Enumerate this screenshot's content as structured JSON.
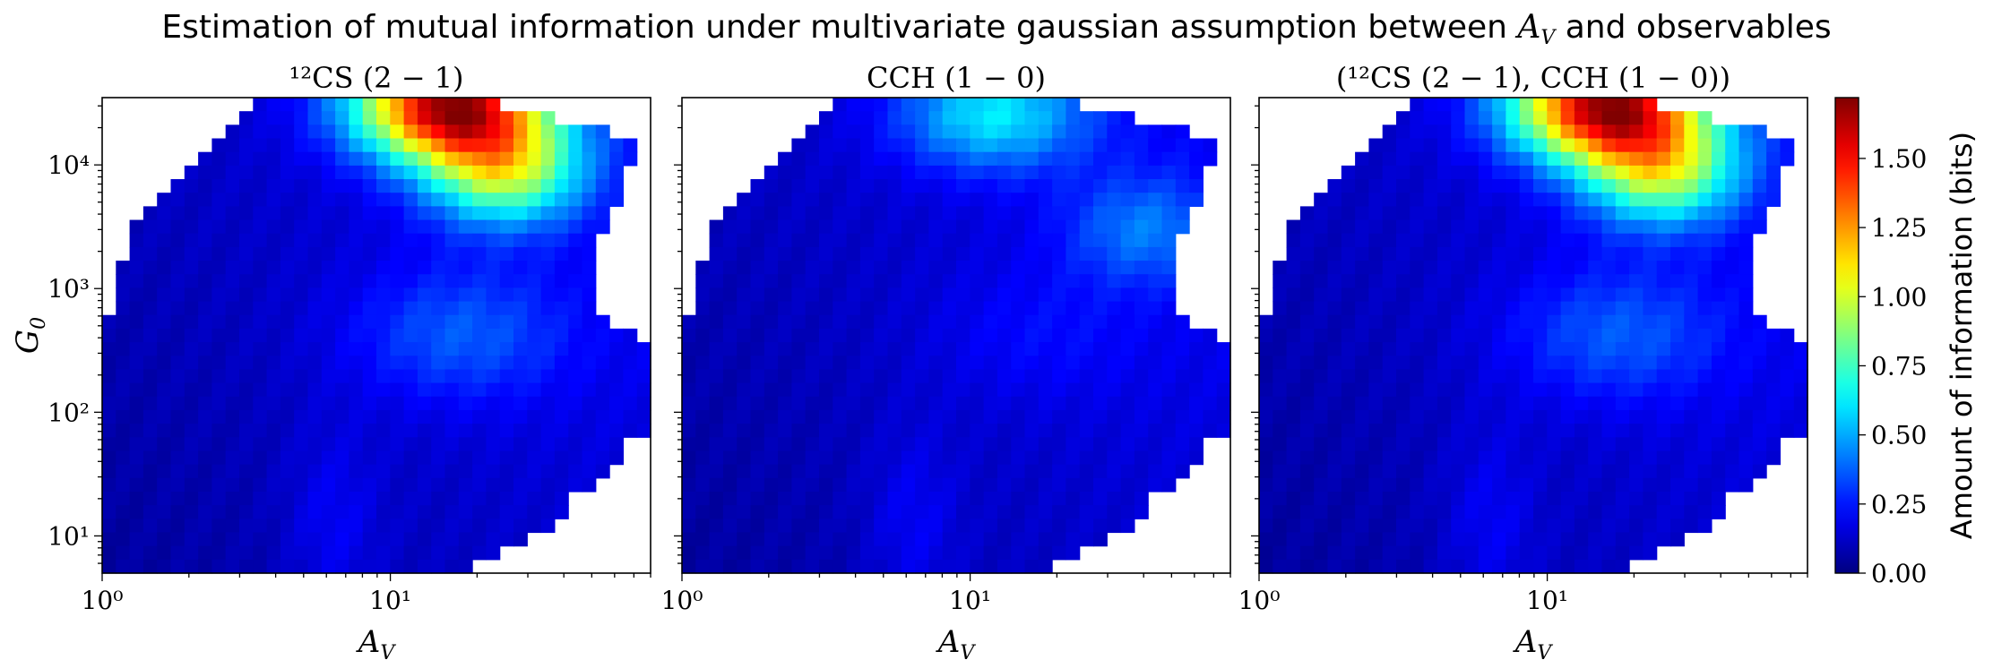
{
  "chart_data": {
    "type": "heatmap",
    "title": "Estimation of mutual information under multivariate gaussian assumption between A_V and observables",
    "colormap": "jet",
    "panels": [
      {
        "title": "¹²CS (2 − 1)",
        "xlabel": "A_V",
        "ylabel": "G_0",
        "x_scale": "log",
        "y_scale": "log",
        "xlim": [
          1,
          80
        ],
        "ylim": [
          5,
          35000
        ],
        "x_ticks": [
          "10⁰",
          "10¹"
        ],
        "y_ticks": [
          "10¹",
          "10²",
          "10³",
          "10⁴"
        ],
        "hotspot": {
          "A_V": 16,
          "G_0": 30000,
          "max_info_bits": 1.6
        },
        "secondary_hotspot": {
          "A_V": 25,
          "G_0": 9000,
          "info_bits": 1.05
        }
      },
      {
        "title": "CCH (1 − 0)",
        "xlabel": "A_V",
        "ylabel": "",
        "x_scale": "log",
        "y_scale": "log",
        "xlim": [
          1,
          80
        ],
        "ylim": [
          5,
          35000
        ],
        "x_ticks": [
          "10⁰",
          "10¹"
        ],
        "y_ticks": [],
        "hotspot": {
          "A_V": 12,
          "G_0": 25000,
          "max_info_bits": 0.6
        },
        "secondary_hotspot": {
          "A_V": 40,
          "G_0": 3000,
          "info_bits": 0.55
        }
      },
      {
        "title": "(¹²CS (2 − 1), CCH (1 − 0))",
        "xlabel": "A_V",
        "ylabel": "",
        "x_scale": "log",
        "y_scale": "log",
        "xlim": [
          1,
          80
        ],
        "ylim": [
          5,
          35000
        ],
        "x_ticks": [
          "10⁰",
          "10¹"
        ],
        "y_ticks": [],
        "hotspot": {
          "A_V": 16,
          "G_0": 30000,
          "max_info_bits": 1.6
        },
        "secondary_hotspot": {
          "A_V": 25,
          "G_0": 9000,
          "info_bits": 1.05
        }
      }
    ],
    "colorbar": {
      "label": "Amount of information (bits)",
      "range": [
        0.0,
        1.72
      ],
      "ticks": [
        "0.00",
        "0.25",
        "0.50",
        "0.75",
        "1.00",
        "1.25",
        "1.50"
      ]
    },
    "grid": false
  }
}
